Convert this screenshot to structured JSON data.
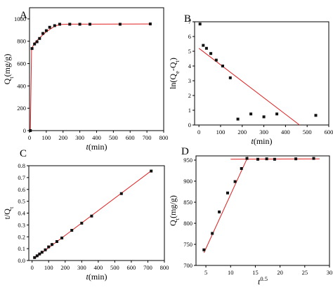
{
  "chart_data": [
    {
      "type": "scatter",
      "panel_label": "A",
      "xlabel": "t(min)",
      "ylabel": "Qt(mg/g)",
      "xlim": [
        0,
        800
      ],
      "ylim": [
        0,
        1100
      ],
      "xticks": [
        0,
        100,
        200,
        300,
        400,
        500,
        600,
        700,
        800
      ],
      "yticks": [
        0,
        200,
        400,
        600,
        800,
        1000
      ],
      "points": [
        {
          "x": 5,
          "y": 0
        },
        {
          "x": 15,
          "y": 735
        },
        {
          "x": 30,
          "y": 775
        },
        {
          "x": 45,
          "y": 795
        },
        {
          "x": 60,
          "y": 825
        },
        {
          "x": 80,
          "y": 870
        },
        {
          "x": 100,
          "y": 895
        },
        {
          "x": 120,
          "y": 925
        },
        {
          "x": 150,
          "y": 940
        },
        {
          "x": 180,
          "y": 952
        },
        {
          "x": 240,
          "y": 952
        },
        {
          "x": 300,
          "y": 952
        },
        {
          "x": 360,
          "y": 952
        },
        {
          "x": 540,
          "y": 952
        },
        {
          "x": 720,
          "y": 955
        }
      ],
      "fit_lines": [
        {
          "x": [
            5,
            12,
            30,
            60,
            100,
            150,
            180,
            240,
            720
          ],
          "y": [
            0,
            730,
            785,
            830,
            885,
            935,
            950,
            953,
            955
          ]
        }
      ]
    },
    {
      "type": "scatter",
      "panel_label": "B",
      "xlabel": "t(min)",
      "ylabel": "ln(Qe-Qt)",
      "xlim": [
        -20,
        600
      ],
      "ylim": [
        0,
        7
      ],
      "xticks": [
        0,
        100,
        200,
        300,
        400,
        500,
        600
      ],
      "yticks": [
        0,
        1,
        2,
        3,
        4,
        5,
        6,
        7
      ],
      "points": [
        {
          "x": 5,
          "y": 6.85
        },
        {
          "x": 20,
          "y": 5.4
        },
        {
          "x": 35,
          "y": 5.2
        },
        {
          "x": 55,
          "y": 4.85
        },
        {
          "x": 80,
          "y": 4.4
        },
        {
          "x": 110,
          "y": 4.0
        },
        {
          "x": 145,
          "y": 3.2
        },
        {
          "x": 180,
          "y": 0.4
        },
        {
          "x": 240,
          "y": 0.75
        },
        {
          "x": 300,
          "y": 0.55
        },
        {
          "x": 360,
          "y": 0.75
        },
        {
          "x": 540,
          "y": 0.65
        }
      ],
      "fit_lines": [
        {
          "x": [
            0,
            465
          ],
          "y": [
            5.2,
            0
          ]
        }
      ]
    },
    {
      "type": "scatter",
      "panel_label": "C",
      "xlabel": "t(min)",
      "ylabel": "t/Qt",
      "xlim": [
        -20,
        800
      ],
      "ylim": [
        0,
        0.8
      ],
      "xticks": [
        0,
        100,
        200,
        300,
        400,
        500,
        600,
        700,
        800
      ],
      "yticks": [
        0.0,
        0.1,
        0.2,
        0.3,
        0.4,
        0.5,
        0.6,
        0.7,
        0.8
      ],
      "points": [
        {
          "x": 15,
          "y": 0.025
        },
        {
          "x": 30,
          "y": 0.04
        },
        {
          "x": 45,
          "y": 0.055
        },
        {
          "x": 60,
          "y": 0.07
        },
        {
          "x": 80,
          "y": 0.09
        },
        {
          "x": 100,
          "y": 0.115
        },
        {
          "x": 120,
          "y": 0.135
        },
        {
          "x": 150,
          "y": 0.16
        },
        {
          "x": 180,
          "y": 0.19
        },
        {
          "x": 240,
          "y": 0.255
        },
        {
          "x": 300,
          "y": 0.315
        },
        {
          "x": 360,
          "y": 0.375
        },
        {
          "x": 540,
          "y": 0.565
        },
        {
          "x": 720,
          "y": 0.755
        }
      ],
      "fit_lines": [
        {
          "x": [
            15,
            720
          ],
          "y": [
            0.018,
            0.757
          ]
        }
      ]
    },
    {
      "type": "scatter",
      "panel_label": "D",
      "xlabel": "t^0.5",
      "ylabel": "Qt(mg/g)",
      "xlim": [
        3,
        30
      ],
      "ylim": [
        700,
        960
      ],
      "xticks": [
        5,
        10,
        15,
        20,
        25,
        30
      ],
      "yticks": [
        700,
        750,
        800,
        850,
        900,
        950
      ],
      "points": [
        {
          "x": 4.6,
          "y": 737
        },
        {
          "x": 6.3,
          "y": 776
        },
        {
          "x": 7.7,
          "y": 827
        },
        {
          "x": 9.4,
          "y": 872
        },
        {
          "x": 10.9,
          "y": 899
        },
        {
          "x": 12.2,
          "y": 930
        },
        {
          "x": 13.3,
          "y": 954
        },
        {
          "x": 15.5,
          "y": 952
        },
        {
          "x": 17.3,
          "y": 953
        },
        {
          "x": 18.9,
          "y": 952
        },
        {
          "x": 23.2,
          "y": 953
        },
        {
          "x": 26.8,
          "y": 954
        }
      ],
      "fit_lines": [
        {
          "x": [
            4.6,
            13.5
          ],
          "y": [
            730,
            958
          ]
        },
        {
          "x": [
            10,
            28
          ],
          "y": [
            952,
            953
          ]
        }
      ]
    }
  ]
}
